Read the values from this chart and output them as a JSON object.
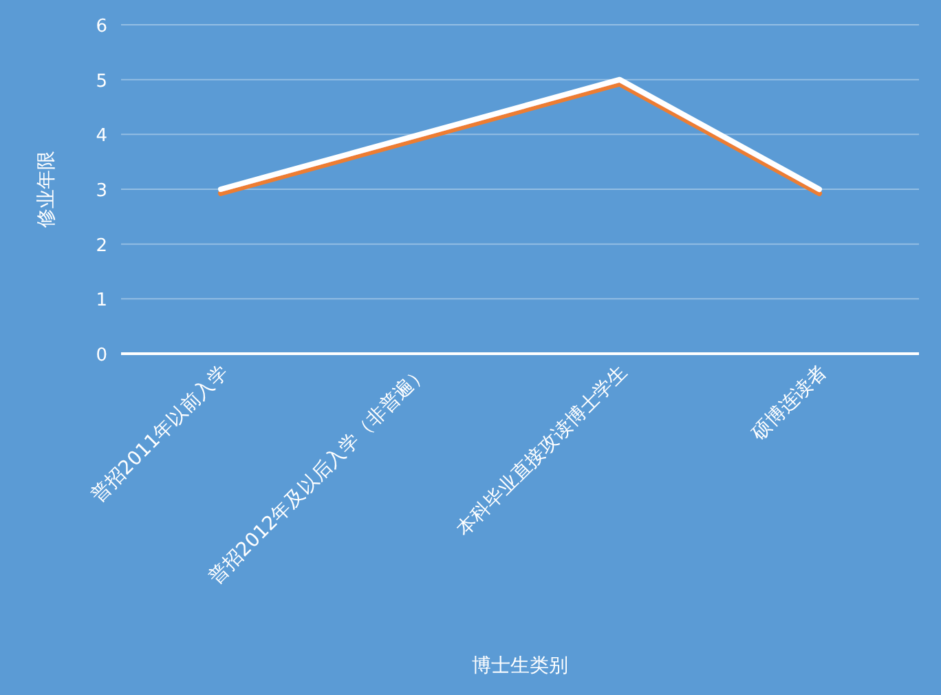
{
  "chart_data": {
    "type": "line",
    "xlabel": "博士生类别",
    "ylabel": "修业年限",
    "categories": [
      "普招2011年以前入学",
      "普招2012年及以后入学（非普遍）",
      "本科毕业直接攻读博士学生",
      "硕博连读者"
    ],
    "series": [
      {
        "color": "#ffffff",
        "values": [
          3,
          4,
          5,
          3
        ]
      }
    ],
    "ylim": [
      0,
      6
    ],
    "yticks": [
      0,
      1,
      2,
      3,
      4,
      5,
      6
    ],
    "grid": "y",
    "marker": "none",
    "line_style": "solid"
  }
}
